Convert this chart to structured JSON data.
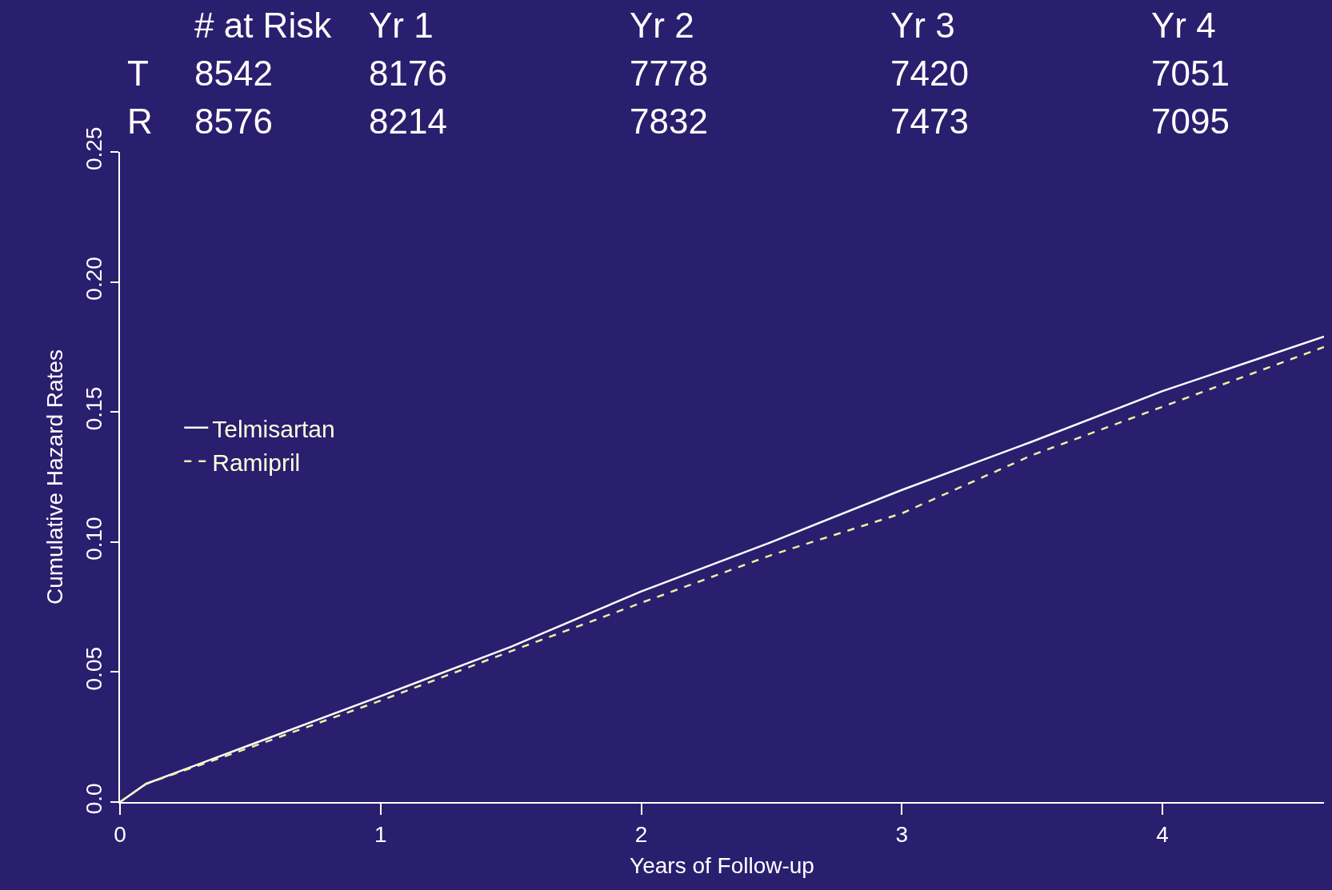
{
  "chart_data": {
    "type": "line",
    "xlabel": "Years of Follow-up",
    "ylabel": "Cumulative Hazard Rates",
    "x": [
      0,
      0.1,
      0.5,
      1,
      1.5,
      2,
      2.5,
      3,
      3.5,
      4,
      4.62
    ],
    "series": [
      {
        "name": "Telmisartan",
        "color": "#ffffff",
        "line_style": "solid",
        "values": [
          0,
          0.007,
          0.022,
          0.0407,
          0.0597,
          0.081,
          0.1,
          0.12,
          0.1386,
          0.158,
          0.179
        ]
      },
      {
        "name": "Ramipril",
        "color": "#f0f0a0",
        "line_style": "dashed",
        "values": [
          0,
          0.007,
          0.021,
          0.039,
          0.058,
          0.0766,
          0.095,
          0.111,
          0.1334,
          0.152,
          0.175
        ]
      }
    ],
    "xlim": [
      0,
      4.62
    ],
    "xticks": [
      0,
      1,
      2,
      3,
      4
    ],
    "ylim": [
      0,
      0.25
    ],
    "yticks": [
      {
        "value": 0,
        "label": "0.0"
      },
      0.05,
      {
        "value": 0.1,
        "label": "0.10"
      },
      0.15,
      {
        "value": 0.2,
        "label": "0.20"
      },
      0.25
    ],
    "grid": false,
    "legend": "left",
    "annotations": [
      "# at Risk",
      "Yr 1",
      "Yr 2",
      "Yr 3",
      "Yr 4",
      "T",
      "8542",
      "8176",
      "7778",
      "7420",
      "7051",
      "R",
      "8576",
      "8214",
      "7832",
      "7473",
      "7095"
    ]
  }
}
